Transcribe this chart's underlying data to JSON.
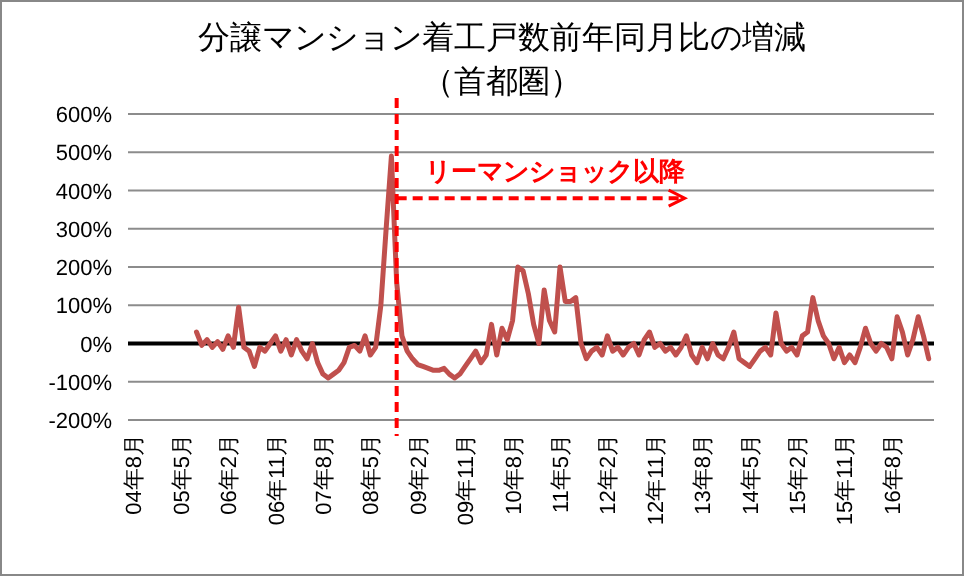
{
  "chart_data": {
    "type": "line",
    "title": "分譲マンション着工戸数前年同月比の増減",
    "subtitle": "（首都圏）",
    "xlim": [
      "2004-07",
      "2017-04"
    ],
    "xticks": [
      {
        "value": "2004-08",
        "label": "04年8月"
      },
      {
        "value": "2005-05",
        "label": "05年5月"
      },
      {
        "value": "2006-02",
        "label": "06年2月"
      },
      {
        "value": "2006-11",
        "label": "06年11月"
      },
      {
        "value": "2007-08",
        "label": "07年8月"
      },
      {
        "value": "2008-05",
        "label": "08年5月"
      },
      {
        "value": "2009-02",
        "label": "09年2月"
      },
      {
        "value": "2009-11",
        "label": "09年11月"
      },
      {
        "value": "2010-08",
        "label": "10年8月"
      },
      {
        "value": "2011-05",
        "label": "11年5月"
      },
      {
        "value": "2012-02",
        "label": "12年2月"
      },
      {
        "value": "2012-11",
        "label": "12年11月"
      },
      {
        "value": "2013-08",
        "label": "13年8月"
      },
      {
        "value": "2014-05",
        "label": "14年5月"
      },
      {
        "value": "2015-02",
        "label": "15年2月"
      },
      {
        "value": "2015-11",
        "label": "15年11月"
      },
      {
        "value": "2016-08",
        "label": "16年8月"
      }
    ],
    "ylim": [
      -200,
      600
    ],
    "yticks": [
      {
        "value": -200,
        "label": "-200%"
      },
      {
        "value": -100,
        "label": "-100%"
      },
      {
        "value": 0,
        "label": "0%"
      },
      {
        "value": 100,
        "label": "100%"
      },
      {
        "value": 200,
        "label": "200%"
      },
      {
        "value": 300,
        "label": "300%"
      },
      {
        "value": 400,
        "label": "400%"
      },
      {
        "value": 500,
        "label": "500%"
      },
      {
        "value": 600,
        "label": "600%"
      }
    ],
    "grid": "y",
    "line_style": "solid",
    "ref_lines": [
      {
        "axis": "x",
        "value": "2008-10",
        "color": "#ff0000",
        "line_style": "dashed"
      }
    ],
    "annotations": [
      {
        "text": "リーマンショック以降",
        "x": "2008-10",
        "y": 380
      }
    ],
    "series": [
      {
        "color": "#c0504d",
        "x": [
          "2005-08",
          "2005-09",
          "2005-10",
          "2005-11",
          "2005-12",
          "2006-01",
          "2006-02",
          "2006-03",
          "2006-04",
          "2006-05",
          "2006-06",
          "2006-07",
          "2006-08",
          "2006-09",
          "2006-10",
          "2006-11",
          "2006-12",
          "2007-01",
          "2007-02",
          "2007-03",
          "2007-04",
          "2007-05",
          "2007-06",
          "2007-07",
          "2007-08",
          "2007-09",
          "2007-10",
          "2007-11",
          "2007-12",
          "2008-01",
          "2008-02",
          "2008-03",
          "2008-04",
          "2008-05",
          "2008-06",
          "2008-07",
          "2008-08",
          "2008-09",
          "2008-10",
          "2008-11",
          "2008-12",
          "2009-01",
          "2009-02",
          "2009-03",
          "2009-04",
          "2009-05",
          "2009-06",
          "2009-07",
          "2009-08",
          "2009-09",
          "2009-10",
          "2009-11",
          "2009-12",
          "2010-01",
          "2010-02",
          "2010-03",
          "2010-04",
          "2010-05",
          "2010-06",
          "2010-07",
          "2010-08",
          "2010-09",
          "2010-10",
          "2010-11",
          "2010-12",
          "2011-01",
          "2011-02",
          "2011-03",
          "2011-04",
          "2011-05",
          "2011-06",
          "2011-07",
          "2011-08",
          "2011-09",
          "2011-10",
          "2011-11",
          "2011-12",
          "2012-01",
          "2012-02",
          "2012-03",
          "2012-04",
          "2012-05",
          "2012-06",
          "2012-07",
          "2012-08",
          "2012-09",
          "2012-10",
          "2012-11",
          "2012-12",
          "2013-01",
          "2013-02",
          "2013-03",
          "2013-04",
          "2013-05",
          "2013-06",
          "2013-07",
          "2013-08",
          "2013-09",
          "2013-10",
          "2013-11",
          "2013-12",
          "2014-01",
          "2014-02",
          "2014-03",
          "2014-04",
          "2014-05",
          "2014-06",
          "2014-07",
          "2014-08",
          "2014-09",
          "2014-10",
          "2014-11",
          "2014-12",
          "2015-01",
          "2015-02",
          "2015-03",
          "2015-04",
          "2015-05",
          "2015-06",
          "2015-07",
          "2015-08",
          "2015-09",
          "2015-10",
          "2015-11",
          "2015-12",
          "2016-01",
          "2016-02",
          "2016-03",
          "2016-04",
          "2016-05",
          "2016-06",
          "2016-07",
          "2016-08",
          "2016-09",
          "2016-10",
          "2016-11",
          "2016-12",
          "2017-01",
          "2017-02",
          "2017-03"
        ],
        "values": [
          30,
          -5,
          10,
          -10,
          5,
          -15,
          20,
          -10,
          95,
          -10,
          -20,
          -60,
          -10,
          -20,
          0,
          20,
          -20,
          10,
          -30,
          10,
          -20,
          -40,
          0,
          -50,
          -80,
          -90,
          -80,
          -70,
          -50,
          -10,
          -5,
          -20,
          20,
          -30,
          -10,
          100,
          300,
          490,
          160,
          20,
          -20,
          -40,
          -55,
          -60,
          -65,
          -70,
          -70,
          -65,
          -80,
          -90,
          -80,
          -60,
          -40,
          -20,
          -50,
          -30,
          50,
          -30,
          40,
          10,
          60,
          200,
          190,
          130,
          50,
          0,
          140,
          60,
          30,
          200,
          110,
          110,
          120,
          0,
          -40,
          -20,
          -10,
          -30,
          20,
          -20,
          -10,
          -30,
          -10,
          0,
          -30,
          10,
          30,
          -10,
          0,
          -20,
          -10,
          -30,
          -10,
          20,
          -30,
          -50,
          -10,
          -40,
          0,
          -30,
          -40,
          -10,
          30,
          -40,
          -50,
          -60,
          -40,
          -20,
          -10,
          -30,
          80,
          0,
          -20,
          -10,
          -30,
          20,
          30,
          120,
          60,
          20,
          0,
          -40,
          -10,
          -50,
          -30,
          -50,
          -10,
          40,
          0,
          -20,
          0,
          -10,
          -40,
          70,
          30,
          -30,
          10,
          70,
          20,
          -40
        ]
      }
    ]
  }
}
